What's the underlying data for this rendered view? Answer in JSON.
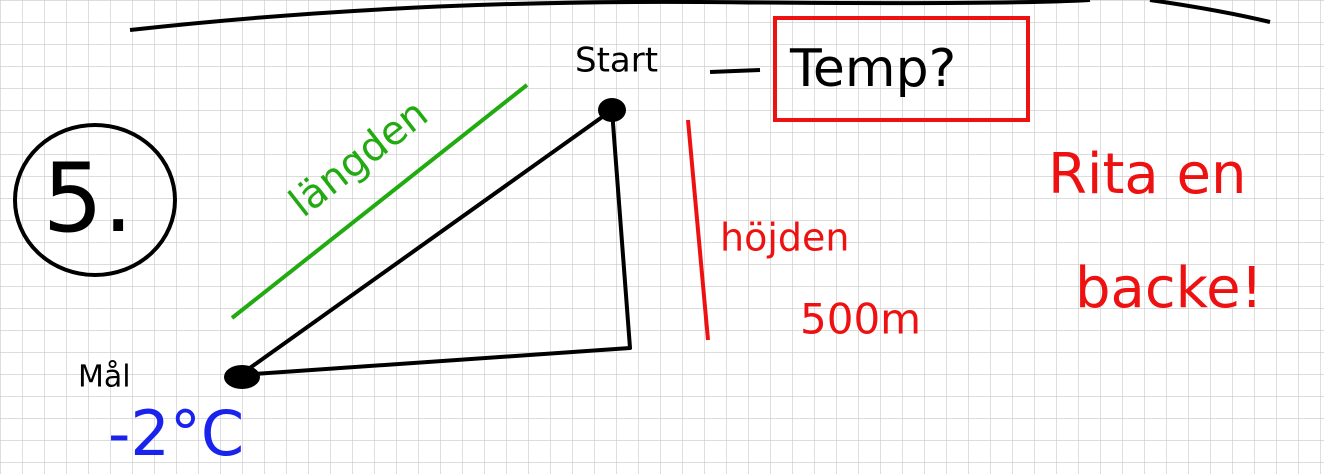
{
  "number": "5.",
  "labels": {
    "start": "Start",
    "temp": "Temp?",
    "finish": "Mål",
    "temperature": "-2°C",
    "length": "längden",
    "height": "höjden",
    "height_value": "500m",
    "instruction_1": "Rita en",
    "instruction_2": "backe!"
  }
}
